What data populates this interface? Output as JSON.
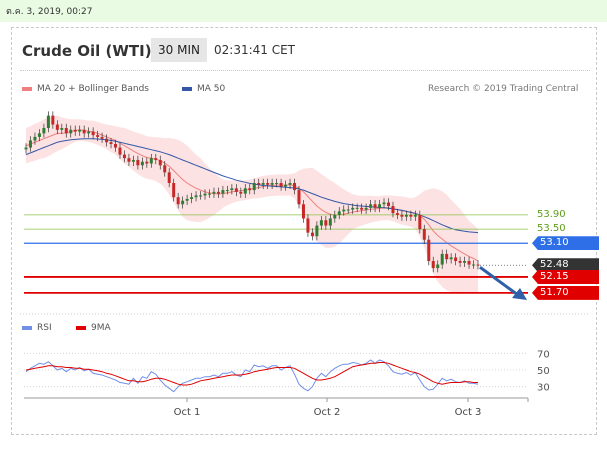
{
  "header": {
    "timestamp": "ต.ค. 3, 2019, 00:27",
    "title": "Crude Oil (WTI)",
    "timeframe": "30 MIN",
    "clock": "02:31:41 CET",
    "credit": "Research © 2019 Trading Central"
  },
  "legend": {
    "bollinger": "MA 20 + Bollinger Bands",
    "ma50": "MA 50",
    "rsi": "RSI",
    "rsi_ma": "9MA"
  },
  "colors": {
    "up_candle": "#2e7d32",
    "down_candle": "#c62828",
    "bollinger": "#f08080",
    "ma50": "#3557a8",
    "green_level": "#8bc34a",
    "blue_level": "#2e6fe8",
    "red_level": "#e00000",
    "last_price": "#333333",
    "rsi": "#6f8fe8",
    "rsi_ma": "#e00000"
  },
  "chart_data": {
    "type": "candlestick",
    "x_ticks": [
      "Oct 1",
      "Oct 2",
      "Oct 3"
    ],
    "levels": [
      {
        "label": "53.90",
        "value": 53.9,
        "kind": "resistance-green"
      },
      {
        "label": "53.50",
        "value": 53.5,
        "kind": "resistance-green"
      },
      {
        "label": "53.10",
        "value": 53.1,
        "kind": "pivot-blue"
      },
      {
        "label": "52.48",
        "value": 52.48,
        "kind": "last-price"
      },
      {
        "label": "52.15",
        "value": 52.15,
        "kind": "support-red"
      },
      {
        "label": "51.70",
        "value": 51.7,
        "kind": "support-red"
      }
    ],
    "price_ylim": [
      51.5,
      57.0
    ],
    "closes": [
      55.8,
      56.0,
      56.1,
      56.2,
      56.35,
      56.7,
      56.45,
      56.3,
      56.35,
      56.2,
      56.3,
      56.25,
      56.3,
      56.2,
      56.25,
      56.15,
      56.1,
      56.05,
      55.95,
      55.9,
      55.8,
      55.6,
      55.5,
      55.4,
      55.45,
      55.3,
      55.4,
      55.35,
      55.5,
      55.45,
      55.3,
      55.1,
      54.8,
      54.4,
      54.2,
      54.3,
      54.35,
      54.4,
      54.45,
      54.45,
      54.5,
      54.5,
      54.55,
      54.5,
      54.6,
      54.6,
      54.65,
      54.55,
      54.5,
      54.65,
      54.6,
      54.8,
      54.75,
      54.8,
      54.75,
      54.8,
      54.8,
      54.7,
      54.75,
      54.8,
      54.6,
      54.2,
      53.8,
      53.4,
      53.3,
      53.6,
      53.75,
      53.6,
      53.8,
      53.9,
      54.0,
      54.05,
      54.05,
      54.1,
      54.1,
      54.05,
      54.1,
      54.2,
      54.1,
      54.2,
      54.25,
      54.15,
      53.95,
      53.9,
      53.85,
      53.9,
      53.85,
      53.9,
      53.5,
      53.2,
      52.6,
      52.4,
      52.5,
      52.8,
      52.65,
      52.7,
      52.6,
      52.55,
      52.6,
      52.5,
      52.5,
      52.48
    ],
    "bb_mid": [
      55.85,
      55.9,
      55.95,
      56.0,
      56.05,
      56.1,
      56.15,
      56.2,
      56.2,
      56.22,
      56.25,
      56.28,
      56.3,
      56.28,
      56.26,
      56.24,
      56.2,
      56.15,
      56.1,
      56.05,
      56.0,
      55.92,
      55.85,
      55.78,
      55.7,
      55.63,
      55.57,
      55.52,
      55.5,
      55.47,
      55.43,
      55.36,
      55.27,
      55.15,
      55.02,
      54.9,
      54.8,
      54.72,
      54.65,
      54.6,
      54.55,
      54.52,
      54.5,
      54.49,
      54.5,
      54.52,
      54.55,
      54.57,
      54.58,
      54.6,
      54.62,
      54.65,
      54.67,
      54.7,
      54.72,
      54.73,
      54.74,
      54.74,
      54.74,
      54.75,
      54.72,
      54.65,
      54.55,
      54.42,
      54.28,
      54.15,
      54.05,
      53.97,
      53.92,
      53.9,
      53.9,
      53.92,
      53.95,
      53.98,
      54.0,
      54.02,
      54.04,
      54.06,
      54.07,
      54.08,
      54.1,
      54.1,
      54.08,
      54.05,
      54.02,
      54.0,
      53.97,
      53.95,
      53.88,
      53.78,
      53.62,
      53.45,
      53.32,
      53.22,
      53.12,
      53.03,
      52.95,
      52.87,
      52.8,
      52.73,
      52.67,
      52.6
    ],
    "bb_width": [
      0.5,
      0.5,
      0.52,
      0.52,
      0.55,
      0.55,
      0.52,
      0.5,
      0.45,
      0.4,
      0.35,
      0.32,
      0.3,
      0.3,
      0.3,
      0.32,
      0.32,
      0.33,
      0.35,
      0.38,
      0.4,
      0.45,
      0.5,
      0.52,
      0.55,
      0.58,
      0.6,
      0.6,
      0.6,
      0.62,
      0.65,
      0.7,
      0.8,
      0.9,
      1.0,
      1.05,
      1.05,
      1.0,
      0.95,
      0.9,
      0.8,
      0.7,
      0.6,
      0.5,
      0.4,
      0.35,
      0.32,
      0.3,
      0.28,
      0.28,
      0.28,
      0.28,
      0.3,
      0.3,
      0.3,
      0.3,
      0.3,
      0.3,
      0.3,
      0.3,
      0.35,
      0.5,
      0.65,
      0.8,
      0.95,
      1.0,
      1.0,
      1.0,
      0.95,
      0.9,
      0.8,
      0.7,
      0.6,
      0.5,
      0.45,
      0.42,
      0.4,
      0.38,
      0.36,
      0.35,
      0.35,
      0.35,
      0.36,
      0.38,
      0.4,
      0.4,
      0.4,
      0.45,
      0.6,
      0.8,
      1.0,
      1.2,
      1.3,
      1.35,
      1.35,
      1.3,
      1.25,
      1.2,
      1.1,
      1.0,
      0.95,
      0.9
    ],
    "ma50": [
      55.6,
      55.65,
      55.7,
      55.75,
      55.8,
      55.85,
      55.9,
      55.95,
      55.98,
      56.0,
      56.02,
      56.03,
      56.04,
      56.05,
      56.05,
      56.05,
      56.04,
      56.03,
      56.02,
      56.0,
      55.98,
      55.95,
      55.92,
      55.89,
      55.86,
      55.83,
      55.8,
      55.77,
      55.74,
      55.71,
      55.68,
      55.64,
      55.6,
      55.55,
      55.5,
      55.45,
      55.4,
      55.35,
      55.3,
      55.25,
      55.2,
      55.15,
      55.1,
      55.05,
      55.0,
      54.96,
      54.92,
      54.88,
      54.85,
      54.82,
      54.79,
      54.77,
      54.75,
      54.73,
      54.72,
      54.71,
      54.7,
      54.69,
      54.68,
      54.67,
      54.66,
      54.63,
      54.6,
      54.55,
      54.5,
      54.45,
      54.4,
      54.36,
      54.32,
      54.28,
      54.25,
      54.22,
      54.2,
      54.18,
      54.16,
      54.15,
      54.14,
      54.13,
      54.12,
      54.11,
      54.1,
      54.09,
      54.07,
      54.05,
      54.03,
      54.0,
      53.97,
      53.94,
      53.9,
      53.85,
      53.8,
      53.74,
      53.68,
      53.62,
      53.57,
      53.52,
      53.48,
      53.46,
      53.44,
      53.42,
      53.41,
      53.4
    ],
    "rsi_ylim": [
      20,
      80
    ],
    "rsi_ticks": [
      30,
      50,
      70
    ],
    "rsi": [
      48,
      52,
      55,
      58,
      57,
      60,
      55,
      50,
      52,
      48,
      52,
      50,
      53,
      49,
      51,
      46,
      45,
      44,
      42,
      40,
      38,
      35,
      34,
      33,
      40,
      34,
      42,
      40,
      48,
      45,
      38,
      32,
      28,
      24,
      30,
      34,
      36,
      38,
      40,
      40,
      42,
      42,
      44,
      42,
      46,
      46,
      48,
      44,
      42,
      50,
      48,
      56,
      54,
      55,
      52,
      55,
      55,
      50,
      53,
      55,
      45,
      33,
      28,
      25,
      30,
      40,
      46,
      42,
      48,
      52,
      55,
      57,
      57,
      59,
      58,
      56,
      58,
      62,
      58,
      62,
      60,
      55,
      48,
      46,
      45,
      47,
      44,
      47,
      38,
      30,
      26,
      27,
      33,
      40,
      37,
      39,
      36,
      35,
      37,
      34,
      34,
      33
    ],
    "rsi_ma": [
      50,
      51,
      52,
      53,
      54,
      55,
      55,
      54,
      54,
      53,
      53,
      52,
      52,
      51,
      51,
      50,
      49,
      48,
      46,
      45,
      43,
      41,
      39,
      37,
      37,
      36,
      36,
      37,
      39,
      40,
      40,
      39,
      37,
      35,
      33,
      32,
      32,
      33,
      35,
      37,
      38,
      39,
      40,
      41,
      42,
      43,
      44,
      44,
      44,
      45,
      46,
      48,
      49,
      50,
      51,
      52,
      53,
      53,
      53,
      53,
      52,
      49,
      46,
      43,
      40,
      38,
      38,
      39,
      40,
      42,
      45,
      48,
      51,
      54,
      55,
      56,
      57,
      58,
      58,
      59,
      59,
      58,
      56,
      54,
      52,
      50,
      48,
      47,
      45,
      42,
      39,
      36,
      34,
      33,
      34,
      35,
      35,
      35,
      36,
      36,
      35,
      35
    ]
  }
}
